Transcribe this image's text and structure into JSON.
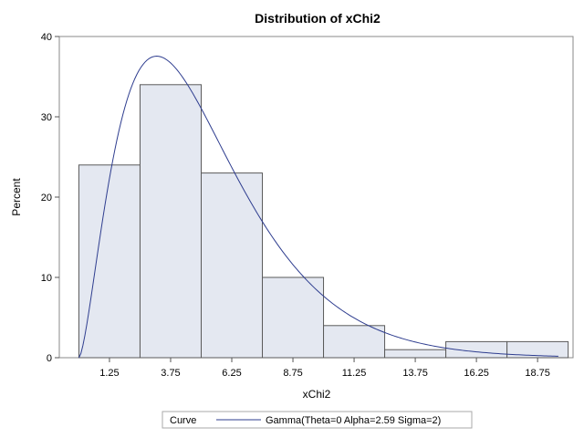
{
  "chart_data": {
    "type": "bar",
    "title": "Distribution of xChi2",
    "xlabel": "xChi2",
    "ylabel": "Percent",
    "bin_width": 2.5,
    "categories": [
      "1.25",
      "3.75",
      "6.25",
      "8.75",
      "11.25",
      "13.75",
      "16.25",
      "18.75"
    ],
    "x": [
      1.25,
      3.75,
      6.25,
      8.75,
      11.25,
      13.75,
      16.25,
      18.75
    ],
    "values": [
      24,
      34,
      23,
      10,
      4,
      1,
      2,
      2
    ],
    "xlim": [
      -0.8,
      20.2
    ],
    "ylim": [
      0,
      40
    ],
    "yticks": [
      0,
      10,
      20,
      30,
      40
    ],
    "grid": false,
    "legend_position": "bottom",
    "legend_title": "Curve",
    "curve": {
      "name": "Gamma(Theta=0 Alpha=2.59 Sigma=2)",
      "distribution": "gamma",
      "theta": 0,
      "alpha": 2.59,
      "sigma": 2
    },
    "colors": {
      "bar_fill": "#e4e8f1",
      "bar_stroke": "#5a5a5a",
      "curve": "#2e3d8f",
      "frame": "#888888",
      "legend_border": "#aaaaaa"
    }
  }
}
